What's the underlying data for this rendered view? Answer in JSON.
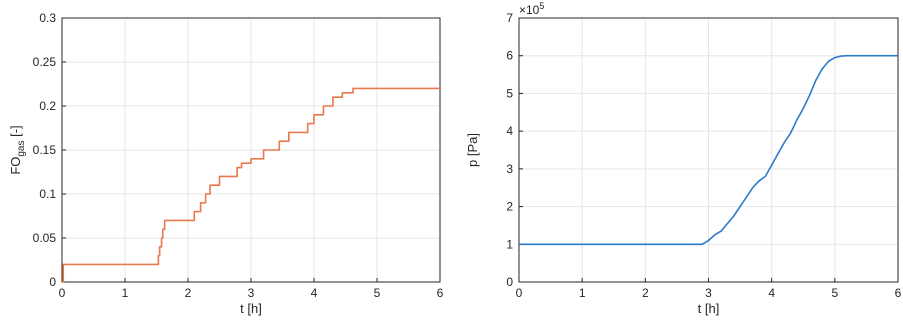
{
  "chart_data": [
    {
      "type": "line",
      "title": "",
      "xlabel": "t [h]",
      "ylabel": "FO",
      "ylabel_subscript": "gas",
      "ylabel_suffix": " [-]",
      "xlim": [
        0,
        6
      ],
      "ylim": [
        0,
        0.3
      ],
      "xticks": [
        "0",
        "1",
        "2",
        "3",
        "4",
        "5",
        "6"
      ],
      "yticks": [
        "0",
        "0.05",
        "0.1",
        "0.15",
        "0.2",
        "0.25",
        "0.3"
      ],
      "grid": true,
      "series": [
        {
          "color": "#e8794d",
          "step": true,
          "x": [
            0,
            0.02,
            1.53,
            1.55,
            1.58,
            1.6,
            1.63,
            2.1,
            2.2,
            2.28,
            2.35,
            2.5,
            2.6,
            2.78,
            2.85,
            3.0,
            3.2,
            3.45,
            3.6,
            3.9,
            4.0,
            4.15,
            4.3,
            4.45,
            4.62,
            6.0
          ],
          "y": [
            0,
            0.02,
            0.03,
            0.04,
            0.05,
            0.06,
            0.07,
            0.08,
            0.09,
            0.1,
            0.11,
            0.12,
            0.12,
            0.13,
            0.135,
            0.14,
            0.15,
            0.16,
            0.17,
            0.18,
            0.19,
            0.2,
            0.21,
            0.215,
            0.22,
            0.22
          ]
        }
      ]
    },
    {
      "type": "line",
      "title": "",
      "xlabel": "t [h]",
      "ylabel": "p [Pa]",
      "xlim": [
        0,
        6
      ],
      "ylim": [
        0,
        7
      ],
      "xticks": [
        "0",
        "1",
        "2",
        "3",
        "4",
        "5",
        "6"
      ],
      "yticks": [
        "0",
        "1",
        "2",
        "3",
        "4",
        "5",
        "6",
        "7"
      ],
      "y_multiplier_base": "×10",
      "y_multiplier_exp": "5",
      "grid": true,
      "series": [
        {
          "color": "#2a7bc9",
          "step": false,
          "x": [
            0,
            2.9,
            3.0,
            3.1,
            3.2,
            3.3,
            3.4,
            3.5,
            3.6,
            3.7,
            3.8,
            3.9,
            4.0,
            4.1,
            4.2,
            4.3,
            4.4,
            4.5,
            4.6,
            4.7,
            4.8,
            4.9,
            5.0,
            5.1,
            5.2,
            5.4,
            6.0
          ],
          "y": [
            1.0,
            1.0,
            1.1,
            1.25,
            1.35,
            1.55,
            1.75,
            2.0,
            2.25,
            2.5,
            2.68,
            2.8,
            3.1,
            3.4,
            3.7,
            3.95,
            4.3,
            4.6,
            4.95,
            5.35,
            5.65,
            5.85,
            5.95,
            5.99,
            6.0,
            6.0,
            6.0
          ]
        }
      ]
    }
  ]
}
